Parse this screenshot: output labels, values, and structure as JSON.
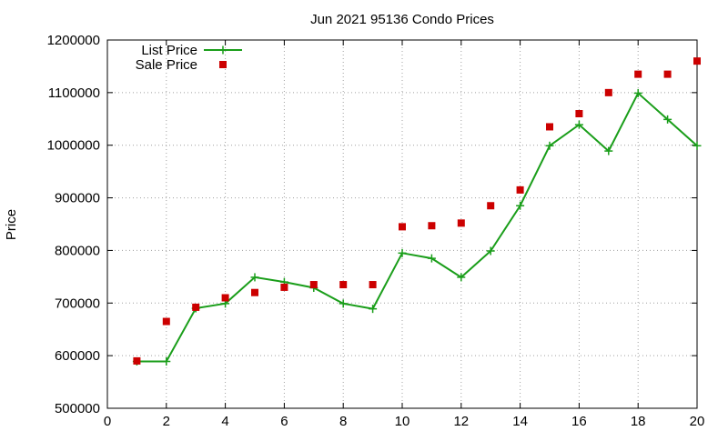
{
  "chart_data": {
    "type": "line",
    "title": "Jun 2021 95136 Condo Prices",
    "xlabel": "",
    "ylabel": "Price",
    "xlim": [
      0,
      20
    ],
    "ylim": [
      500000,
      1200000
    ],
    "xticks": [
      0,
      2,
      4,
      6,
      8,
      10,
      12,
      14,
      16,
      18,
      20
    ],
    "yticks": [
      500000,
      600000,
      700000,
      800000,
      900000,
      1000000,
      1100000,
      1200000
    ],
    "grid": true,
    "legend_position": "top-left",
    "series": [
      {
        "name": "List Price",
        "style": "line-with-plus-markers",
        "color": "#1a9e1a",
        "x": [
          1,
          2,
          3,
          4,
          5,
          6,
          7,
          8,
          9,
          10,
          11,
          12,
          13,
          14,
          15,
          16,
          17,
          18,
          19,
          20
        ],
        "values": [
          589000,
          589000,
          690000,
          699000,
          749000,
          740000,
          729000,
          699000,
          689000,
          795000,
          785000,
          749000,
          799000,
          885000,
          999000,
          1039000,
          989000,
          1099000,
          1049000,
          999000
        ]
      },
      {
        "name": "Sale Price",
        "style": "square-markers",
        "color": "#cc0000",
        "x": [
          1,
          2,
          3,
          4,
          5,
          6,
          7,
          8,
          9,
          10,
          11,
          12,
          13,
          14,
          15,
          16,
          17,
          18,
          19,
          20
        ],
        "values": [
          590000,
          665000,
          692000,
          710000,
          720000,
          730000,
          735000,
          735000,
          735000,
          845000,
          847000,
          852000,
          885000,
          915000,
          1035000,
          1060000,
          1100000,
          1135000,
          1135000,
          1160000
        ]
      }
    ]
  }
}
